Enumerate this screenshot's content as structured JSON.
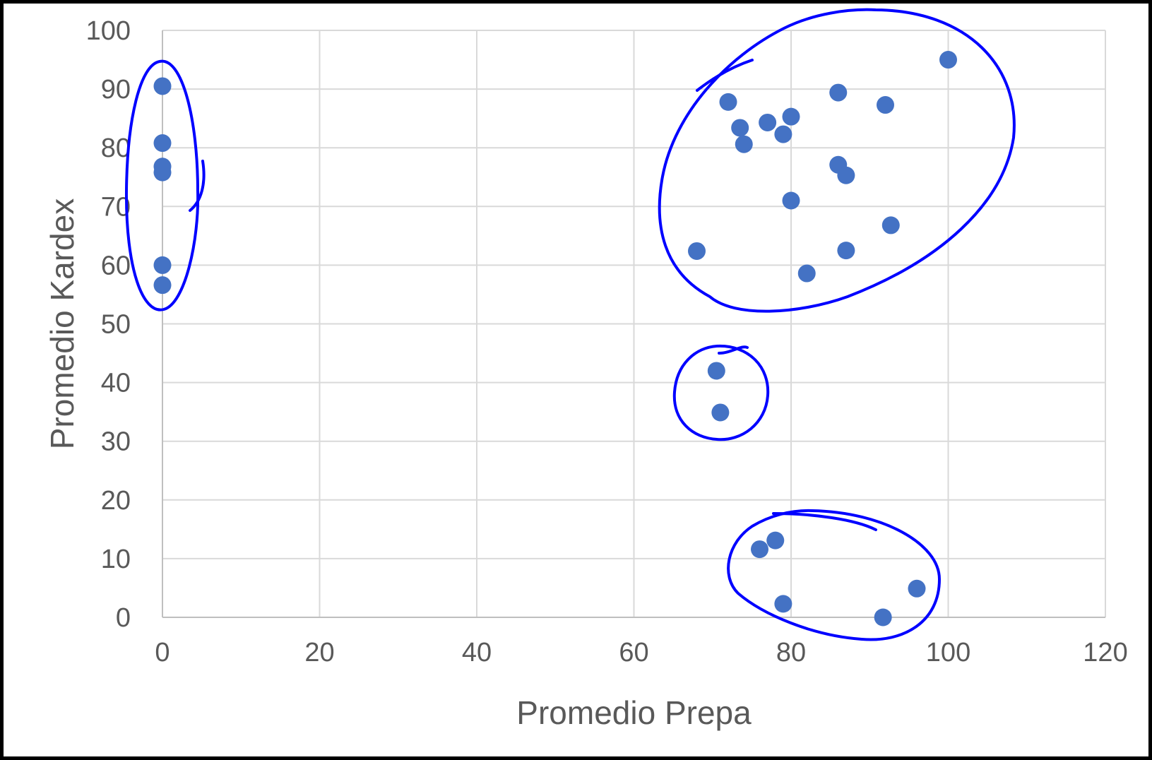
{
  "chart_data": {
    "type": "scatter",
    "xlabel": "Promedio Prepa",
    "ylabel": "Promedio Kardex",
    "xlim": [
      0,
      120
    ],
    "ylim": [
      0,
      100
    ],
    "xticks": [
      0,
      20,
      40,
      60,
      80,
      100,
      120
    ],
    "yticks": [
      0,
      10,
      20,
      30,
      40,
      50,
      60,
      70,
      80,
      90,
      100
    ],
    "grid": true,
    "legend": "none",
    "marker_color": "#4472c4",
    "annotation_color": "#0000ff",
    "series": [
      {
        "points": [
          {
            "x": 0,
            "y": 90.5
          },
          {
            "x": 0,
            "y": 80.8
          },
          {
            "x": 0,
            "y": 76.8
          },
          {
            "x": 0,
            "y": 75.8
          },
          {
            "x": 0,
            "y": 60.0
          },
          {
            "x": 0,
            "y": 56.6
          },
          {
            "x": 100,
            "y": 95.0
          },
          {
            "x": 72,
            "y": 87.8
          },
          {
            "x": 86,
            "y": 89.4
          },
          {
            "x": 92,
            "y": 87.3
          },
          {
            "x": 73.5,
            "y": 83.4
          },
          {
            "x": 77,
            "y": 84.3
          },
          {
            "x": 80,
            "y": 85.3
          },
          {
            "x": 79,
            "y": 82.3
          },
          {
            "x": 74,
            "y": 80.6
          },
          {
            "x": 86,
            "y": 77.1
          },
          {
            "x": 87,
            "y": 75.3
          },
          {
            "x": 80,
            "y": 71.0
          },
          {
            "x": 92.7,
            "y": 66.8
          },
          {
            "x": 68,
            "y": 62.4
          },
          {
            "x": 87,
            "y": 62.5
          },
          {
            "x": 82,
            "y": 58.6
          },
          {
            "x": 70.5,
            "y": 42.0
          },
          {
            "x": 71,
            "y": 34.9
          },
          {
            "x": 78,
            "y": 13.1
          },
          {
            "x": 76,
            "y": 11.6
          },
          {
            "x": 96,
            "y": 4.9
          },
          {
            "x": 79,
            "y": 2.3
          },
          {
            "x": 91.7,
            "y": 0
          }
        ]
      }
    ]
  }
}
